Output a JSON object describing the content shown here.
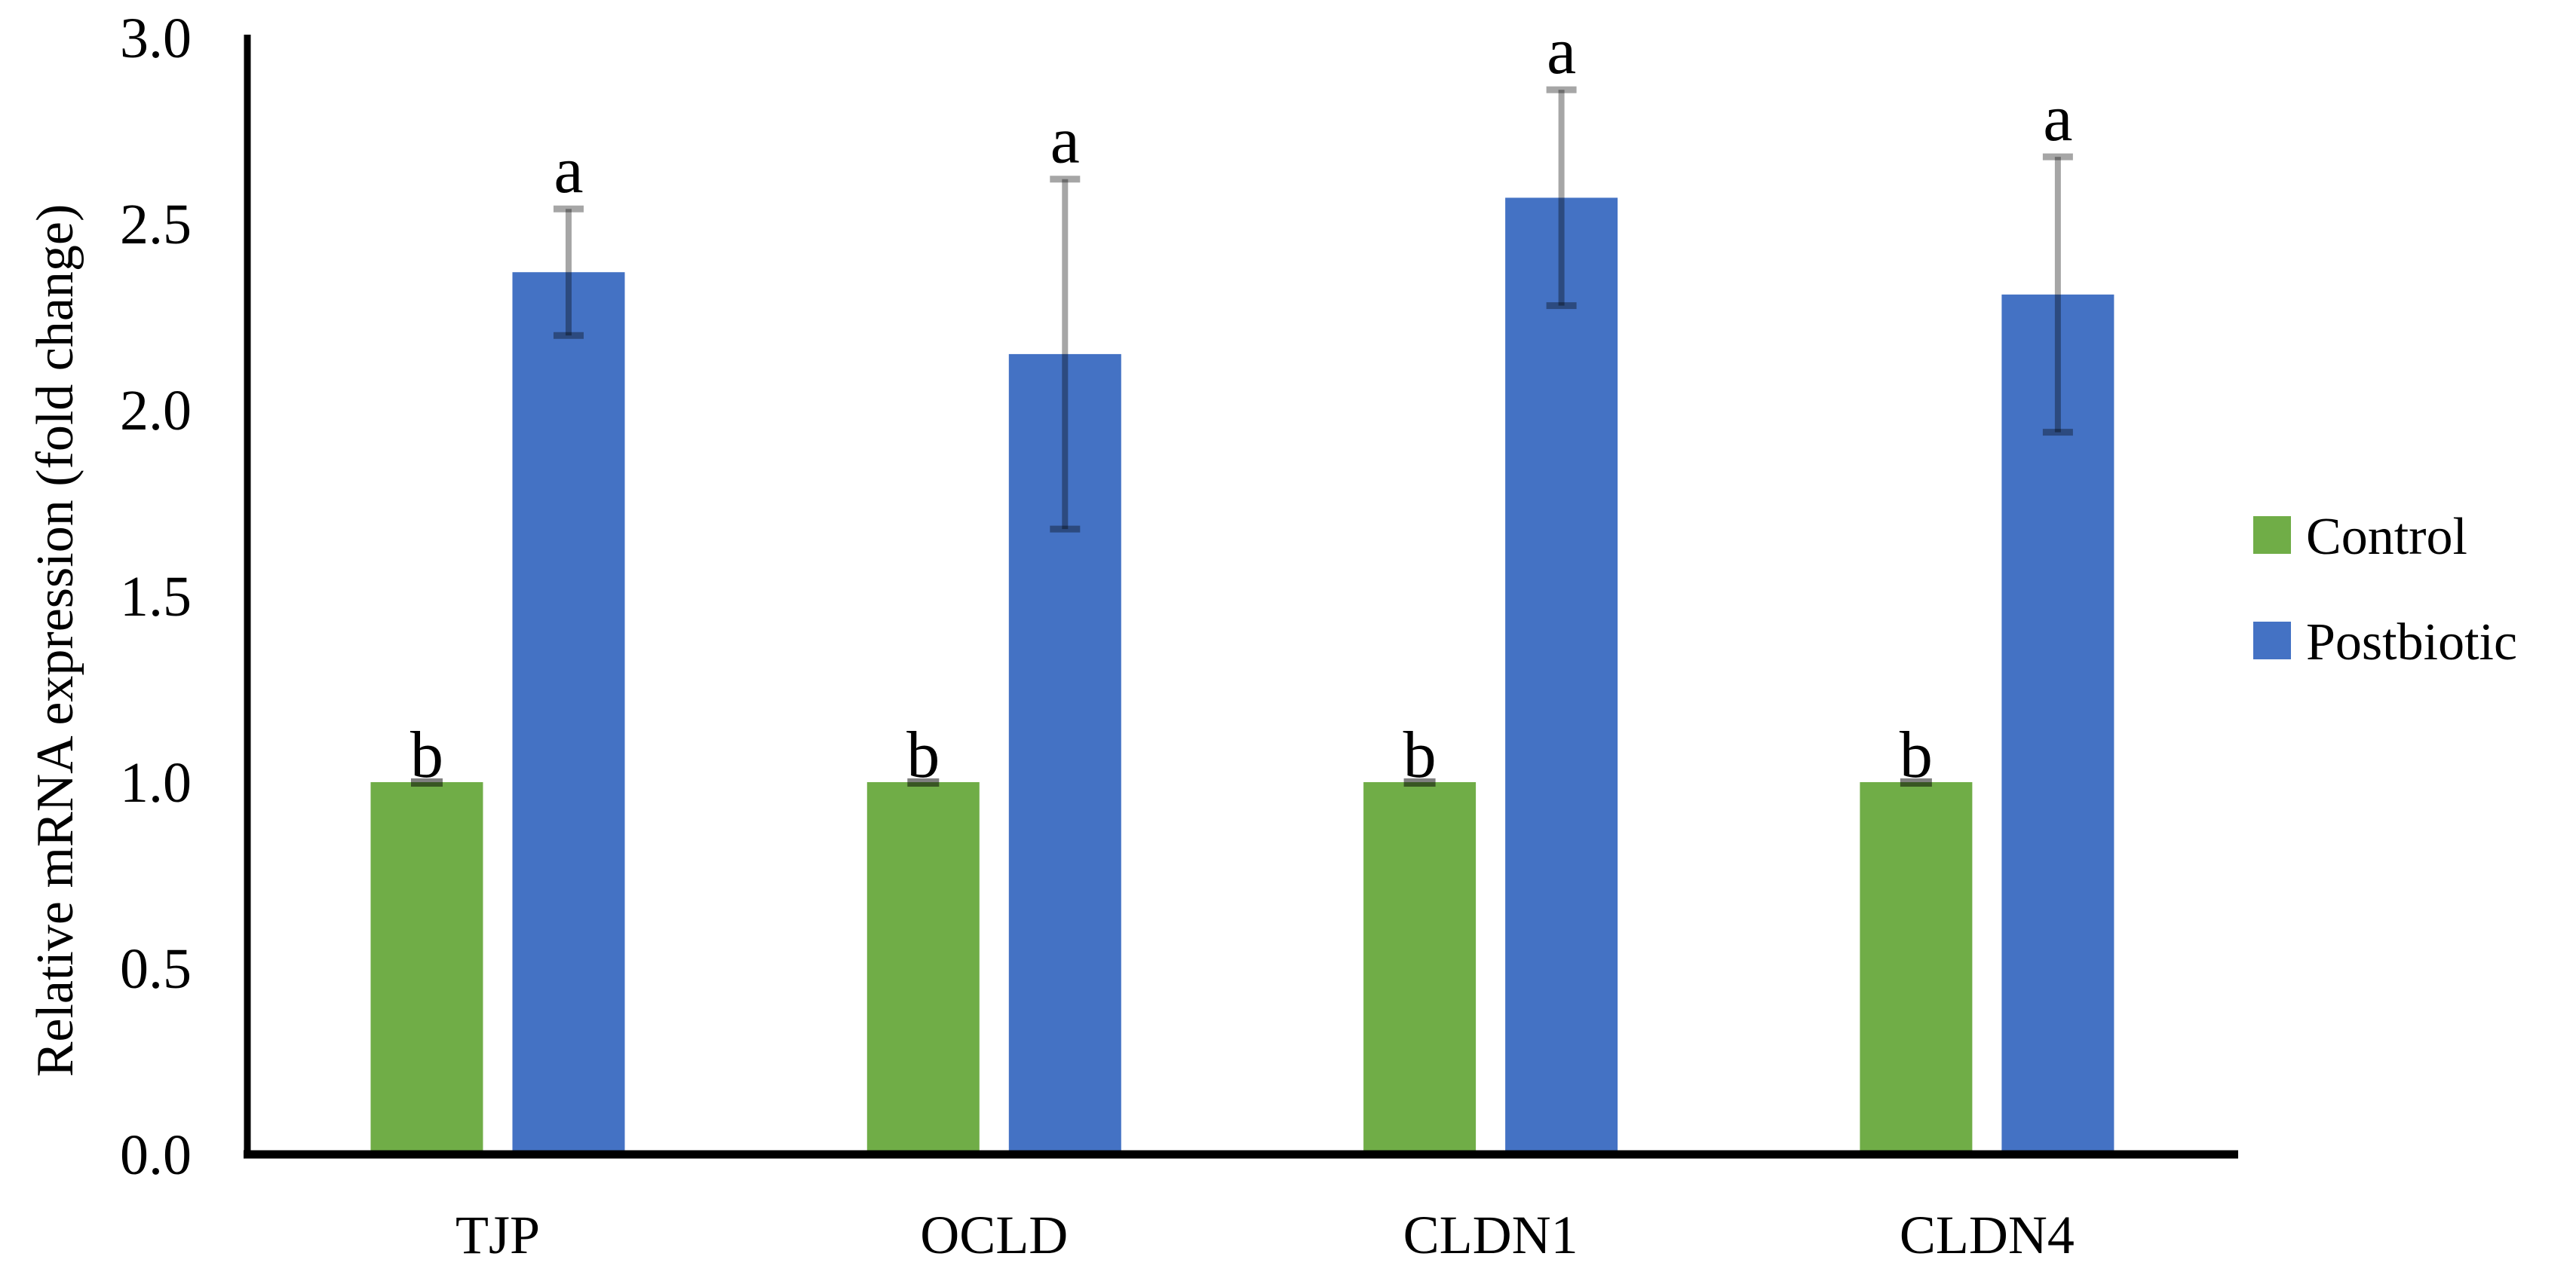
{
  "figure": {
    "background": "#FFFFFF",
    "axis_color": "#000000"
  },
  "chart_data": {
    "type": "bar",
    "title": "",
    "ylabel": "Relative mRNA expression (fold change)",
    "xlabel": "",
    "categories": [
      "TJP",
      "OCLD",
      "CLDN1",
      "CLDN4"
    ],
    "series": [
      {
        "name": "Control",
        "color": "#70AD47",
        "values": [
          1.0,
          1.0,
          1.0,
          1.0
        ],
        "errors": [
          0.02,
          0.02,
          0.02,
          0.02
        ],
        "sig_letters": [
          "b",
          "b",
          "b",
          "b"
        ]
      },
      {
        "name": "Postbiotic",
        "color": "#4472C4",
        "values": [
          2.37,
          2.15,
          2.57,
          2.31
        ],
        "errors": [
          0.17,
          0.47,
          0.29,
          0.37
        ],
        "sig_letters": [
          "a",
          "a",
          "a",
          "a"
        ]
      }
    ],
    "ylim": [
      0.0,
      3.0
    ],
    "ytick_step": 0.5,
    "ytick_labels": [
      "0.0",
      "0.5",
      "1.0",
      "1.5",
      "2.0",
      "2.5",
      "3.0"
    ],
    "grid": false,
    "legend_position": "right",
    "error_bar_color": "rgba(0,0,0,0.35)",
    "control_cap_color": "rgba(0,0,0,0.5)"
  }
}
